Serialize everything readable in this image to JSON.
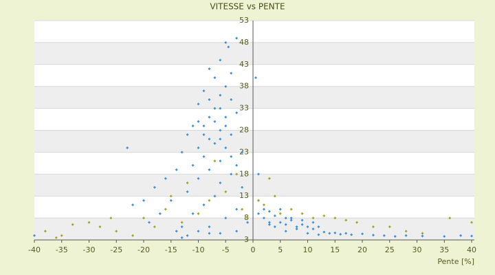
{
  "chart_data": {
    "type": "scatter",
    "title": "VITESSE vs PENTE",
    "x_label": "Pente [%]",
    "xlim": [
      -40,
      40.5
    ],
    "ylim": [
      3,
      53
    ],
    "xticks": [
      -40,
      -35,
      -30,
      -25,
      -20,
      -15,
      -10,
      -5,
      0,
      5,
      10,
      15,
      20,
      25,
      30,
      35,
      40
    ],
    "yticks": [
      3,
      8,
      13,
      18,
      23,
      28,
      33,
      38,
      43,
      48,
      53
    ],
    "grid": true,
    "series": [
      {
        "name": "Blue",
        "color": "#3b8fdc",
        "x": [
          -5,
          -4.5,
          -3,
          -6,
          -8,
          -7,
          -5,
          -9,
          -6,
          -4,
          -10,
          -7,
          -8,
          -5,
          -3,
          -11,
          -9,
          -6,
          -4,
          -12,
          -8,
          -7,
          -10,
          -5,
          -2,
          -13,
          -9,
          -6,
          -3,
          -11,
          -14,
          -8,
          -4,
          -16,
          -10,
          -6,
          -2,
          -18,
          -12,
          -7,
          -20,
          -15,
          -9,
          -3,
          -22,
          -17,
          -11,
          -5,
          -23,
          -19,
          -13,
          -8,
          -1,
          -14,
          -10,
          -6,
          -12,
          -3,
          -13,
          -8,
          -40,
          -4,
          -7,
          -6,
          -5,
          -9,
          -10,
          -8,
          -4,
          -6,
          1,
          2,
          3,
          4,
          5,
          6,
          7,
          8,
          9,
          10,
          11,
          12,
          13,
          14,
          15,
          16,
          17,
          18,
          20,
          22,
          24,
          26,
          28,
          31,
          35,
          38,
          40,
          3,
          5,
          7,
          9,
          11,
          4,
          6,
          8,
          2,
          1,
          1,
          0.5,
          3,
          10,
          12,
          6
        ],
        "values": [
          48,
          47,
          49,
          44,
          42,
          40,
          38,
          37,
          36,
          35,
          34,
          33,
          31,
          31,
          32,
          29,
          29,
          28,
          27,
          27,
          26,
          25,
          24,
          24,
          23,
          23,
          22,
          21,
          20,
          20,
          19,
          19,
          18,
          17,
          17,
          16,
          15,
          15,
          14,
          13,
          12,
          12,
          11,
          10,
          11,
          9,
          9,
          8,
          24,
          7,
          6,
          6,
          7,
          5,
          5,
          4.5,
          4,
          5,
          3.5,
          4.5,
          4,
          22,
          30,
          26,
          29,
          27,
          30,
          35,
          41,
          33,
          9,
          8,
          7,
          8.5,
          7,
          6.5,
          7.5,
          6,
          6.5,
          6,
          5.5,
          6,
          4.8,
          4.5,
          4.6,
          4.3,
          4.5,
          4.2,
          4.4,
          4.1,
          4,
          3.8,
          4,
          3.9,
          3.8,
          4,
          3.9,
          9.5,
          10,
          8,
          7.5,
          7,
          6,
          5,
          5.5,
          10,
          12,
          18,
          40,
          6.5,
          4.5,
          4.2,
          8
        ]
      },
      {
        "name": "Olive",
        "color": "#a3a326",
        "x": [
          -38,
          -35,
          -33,
          -30,
          -28,
          -25,
          -22,
          -20,
          -18,
          -16,
          -15,
          -13,
          -12,
          -10,
          -8,
          -7,
          -5,
          -3,
          -2,
          -1,
          1,
          2,
          3,
          4,
          5,
          7,
          9,
          11,
          13,
          15,
          17,
          19,
          22,
          25,
          28,
          31,
          36,
          40,
          -26,
          -36
        ],
        "values": [
          5,
          4,
          6.5,
          7,
          6,
          5,
          4,
          8,
          6,
          10,
          13,
          7,
          16,
          9,
          12,
          21,
          14,
          18,
          10,
          8,
          12,
          11,
          17,
          13,
          9,
          10,
          9,
          8,
          8.5,
          8,
          7.5,
          7,
          6,
          6,
          5,
          4.5,
          8,
          7,
          8,
          3.5
        ]
      }
    ]
  }
}
